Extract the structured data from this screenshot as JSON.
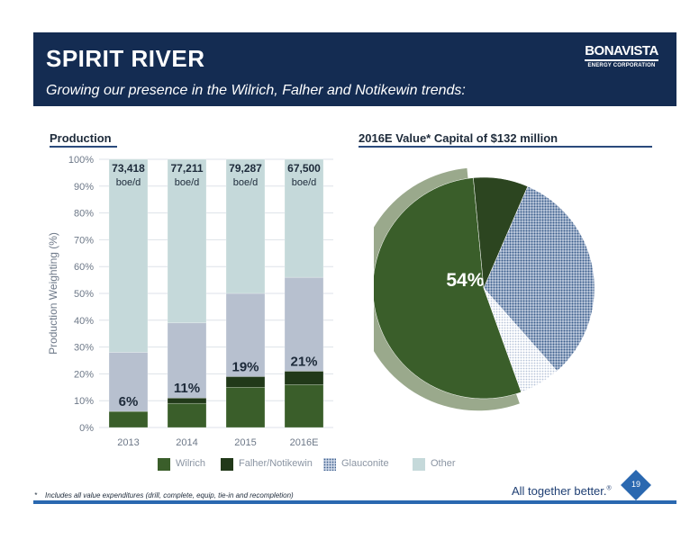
{
  "header": {
    "title": "SPIRIT RIVER",
    "subtitle": "Growing our presence in the Wilrich, Falher and Notikewin trends:",
    "logo_name": "BONAVISTA",
    "logo_sub": "ENERGY CORPORATION"
  },
  "production_title": "Production",
  "value_title": "2016E Value* Capital of $132 million",
  "colors": {
    "banner": "#142c52",
    "wilrich": "#3a5e2a",
    "falher": "#213919",
    "glauconite": "#b7c0cf",
    "other": "#c5d9da",
    "pie_wilrich": "#3a5e2a",
    "pie_wilrich_ring": "#9aa98c",
    "pie_falher": "#2c4520",
    "pie_glauconite": "#3c5e8c",
    "pie_other": "#c9d3e4",
    "accent_blue": "#2a68b0"
  },
  "chart_data": [
    {
      "type": "bar",
      "stacked": true,
      "title": "Production",
      "ylabel": "Production Weighting (%)",
      "xlabel": "",
      "categories": [
        "2013",
        "2014",
        "2015",
        "2016E"
      ],
      "ylim": [
        0,
        100
      ],
      "yticks": [
        "0%",
        "10%",
        "20%",
        "30%",
        "40%",
        "50%",
        "60%",
        "70%",
        "80%",
        "90%",
        "100%"
      ],
      "series": [
        {
          "name": "Wilrich",
          "values": [
            6,
            9,
            15,
            16
          ]
        },
        {
          "name": "Falher/Notikewin",
          "values": [
            0,
            2,
            4,
            5
          ]
        },
        {
          "name": "Glauconite",
          "values": [
            22,
            28,
            31,
            35
          ]
        },
        {
          "name": "Other",
          "values": [
            72,
            61,
            50,
            44
          ]
        }
      ],
      "bar_labels": [
        "6%",
        "11%",
        "19%",
        "21%"
      ],
      "top_labels": [
        {
          "value": "73,418",
          "unit": "boe/d"
        },
        {
          "value": "77,211",
          "unit": "boe/d"
        },
        {
          "value": "79,287",
          "unit": "boe/d"
        },
        {
          "value": "67,500",
          "unit": "boe/d"
        }
      ],
      "grid": true
    },
    {
      "type": "pie",
      "title": "2016E Value* Capital of $132 million",
      "series": [
        {
          "name": "Wilrich",
          "value": 54
        },
        {
          "name": "Falher/Notikewin",
          "value": 8
        },
        {
          "name": "Glauconite",
          "value": 32
        },
        {
          "name": "Other",
          "value": 6
        }
      ],
      "labels": [
        "54%"
      ]
    }
  ],
  "legend": [
    {
      "name": "Wilrich",
      "color": "#3a5e2a",
      "pattern": "solid"
    },
    {
      "name": "Falher/Notikewin",
      "color": "#213919",
      "pattern": "solid"
    },
    {
      "name": "Glauconite",
      "color": "#3c5e8c",
      "pattern": "dots"
    },
    {
      "name": "Other",
      "color": "#c5d9da",
      "pattern": "solid"
    }
  ],
  "footnote_mark": "*",
  "footnote": "Includes all value expenditures (drill, complete, equip, tie-in and recompletion)",
  "tagline": "All together better.",
  "tagline_mark": "®",
  "page_number": "19"
}
